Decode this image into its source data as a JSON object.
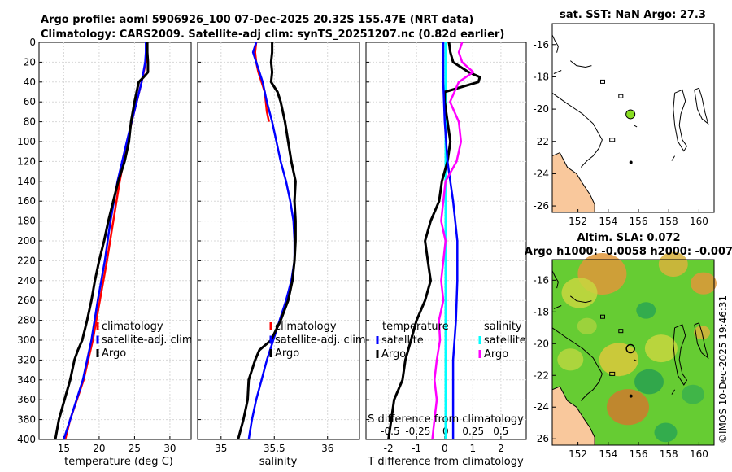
{
  "header": {
    "line1": "Argo profile: aoml 5906926_100 07-Dec-2025 20.32S 155.47E (NRT data)",
    "line2": "Climatology: CARS2009. Satellite-adj clim: synTS_20251207.nc (0.82d earlier)"
  },
  "watermark": "©IMOS 10-Dec-2025 19:46:31",
  "colors": {
    "climatology": "#ff0000",
    "satellite": "#0000ff",
    "argo": "#000000",
    "s_satellite": "#00ffff",
    "s_argo": "#ff00ff",
    "land": "#f9c89c",
    "coast": "#000000",
    "marker_sst": "#88dd22"
  },
  "chart_data": [
    {
      "id": "temperature",
      "type": "line",
      "xlabel": "temperature (deg C)",
      "ylabel": "",
      "xlim": [
        11.5,
        33
      ],
      "ylim": [
        0,
        400
      ],
      "y_inverted": true,
      "x_ticks": [
        "15",
        "20",
        "25",
        "30"
      ],
      "x_tick_values": [
        15,
        20,
        25,
        30
      ],
      "y_ticks": [
        "0",
        "20",
        "40",
        "60",
        "80",
        "100",
        "120",
        "140",
        "160",
        "180",
        "200",
        "220",
        "240",
        "260",
        "280",
        "300",
        "320",
        "340",
        "360",
        "380",
        "400"
      ],
      "legend": [
        "climatology",
        "satellite-adj. clim",
        "Argo"
      ],
      "series": [
        {
          "name": "climatology",
          "color": "#ff0000",
          "depth": [
            0,
            10,
            20,
            40,
            60,
            80,
            100,
            140,
            180,
            220,
            260,
            300,
            340,
            380,
            400
          ],
          "values": [
            26.7,
            26.7,
            26.6,
            26.0,
            25.3,
            24.6,
            24.0,
            22.9,
            22.0,
            21.1,
            20.1,
            19.1,
            17.8,
            15.9,
            15.2
          ]
        },
        {
          "name": "satellite-adj. clim",
          "color": "#0000ff",
          "depth": [
            0,
            10,
            20,
            40,
            60,
            80,
            100,
            140,
            180,
            220,
            260,
            300,
            340,
            380,
            400
          ],
          "values": [
            26.6,
            26.6,
            26.5,
            26.0,
            25.3,
            24.6,
            23.9,
            22.6,
            21.6,
            20.8,
            19.8,
            18.9,
            17.7,
            15.9,
            15.0
          ]
        },
        {
          "name": "Argo",
          "color": "#000000",
          "depth": [
            0,
            10,
            20,
            30,
            35,
            40,
            50,
            60,
            80,
            100,
            120,
            140,
            160,
            180,
            200,
            220,
            240,
            260,
            280,
            300,
            310,
            320,
            340,
            360,
            380,
            400
          ],
          "values": [
            26.8,
            26.8,
            26.9,
            26.9,
            26.3,
            25.6,
            25.3,
            25.0,
            24.5,
            24.2,
            23.6,
            22.7,
            22.0,
            21.3,
            20.7,
            20.0,
            19.4,
            18.9,
            18.3,
            17.6,
            17.0,
            16.5,
            15.9,
            15.1,
            14.3,
            13.8
          ]
        }
      ]
    },
    {
      "id": "salinity",
      "type": "line",
      "xlabel": "salinity",
      "ylabel": "",
      "xlim": [
        34.78,
        36.3
      ],
      "ylim": [
        0,
        400
      ],
      "y_inverted": true,
      "x_ticks": [
        "35",
        "35.5",
        "36"
      ],
      "x_tick_values": [
        35,
        35.5,
        36
      ],
      "legend": [
        "climatology",
        "satellite-adj. clim",
        "Argo"
      ],
      "series": [
        {
          "name": "climatology",
          "color": "#ff0000",
          "depth": [
            0,
            10,
            20,
            30,
            40,
            50,
            60,
            70,
            80
          ],
          "values": [
            35.33,
            35.32,
            35.33,
            35.35,
            35.38,
            35.41,
            35.42,
            35.43,
            35.45
          ]
        },
        {
          "name": "satellite-adj. clim",
          "color": "#0000ff",
          "depth": [
            0,
            10,
            20,
            40,
            60,
            80,
            100,
            120,
            140,
            160,
            180,
            200,
            220,
            240,
            260,
            280,
            300,
            320,
            340,
            360,
            380,
            400
          ],
          "values": [
            35.33,
            35.3,
            35.33,
            35.39,
            35.43,
            35.48,
            35.52,
            35.56,
            35.61,
            35.65,
            35.68,
            35.69,
            35.69,
            35.66,
            35.61,
            35.55,
            35.49,
            35.43,
            35.38,
            35.33,
            35.29,
            35.26
          ]
        },
        {
          "name": "Argo",
          "color": "#000000",
          "depth": [
            0,
            10,
            20,
            30,
            40,
            50,
            60,
            80,
            100,
            120,
            140,
            160,
            180,
            200,
            220,
            240,
            260,
            280,
            300,
            310,
            320,
            340,
            360,
            380,
            400
          ],
          "values": [
            35.48,
            35.48,
            35.47,
            35.48,
            35.47,
            35.53,
            35.56,
            35.6,
            35.63,
            35.66,
            35.7,
            35.69,
            35.7,
            35.7,
            35.69,
            35.67,
            35.63,
            35.56,
            35.47,
            35.36,
            35.32,
            35.26,
            35.25,
            35.21,
            35.16
          ]
        }
      ]
    },
    {
      "id": "difference",
      "type": "line",
      "xlabel": "T difference from climatology",
      "xlabel_top": "S difference from climatology",
      "ylabel": "",
      "xlim": [
        -2.8,
        2.9
      ],
      "xlim_s": [
        -0.72,
        0.73
      ],
      "ylim": [
        0,
        400
      ],
      "y_inverted": true,
      "x_ticks": [
        "-2",
        "-1",
        "0",
        "1",
        "2"
      ],
      "x_tick_values": [
        -2,
        -1,
        0,
        1,
        2
      ],
      "x_ticks_top": [
        "-0.5",
        "-0.25",
        "0",
        "0.25",
        "0.5"
      ],
      "x_tick_values_top": [
        -0.5,
        -0.25,
        0,
        0.25,
        0.5
      ],
      "legend_groups": [
        {
          "title": "temperature",
          "items": [
            "satellite",
            "Argo"
          ]
        },
        {
          "title": "salinity",
          "items": [
            "satellite",
            "Argo"
          ]
        }
      ],
      "series": [
        {
          "name": "temperature satellite",
          "color": "#0000ff",
          "axis": "T",
          "depth": [
            0,
            40,
            80,
            120,
            160,
            200,
            240,
            280,
            320,
            360,
            400
          ],
          "values": [
            -0.05,
            -0.05,
            0.0,
            0.1,
            0.3,
            0.45,
            0.45,
            0.4,
            0.3,
            0.3,
            0.3
          ]
        },
        {
          "name": "temperature Argo",
          "color": "#000000",
          "axis": "T",
          "depth": [
            0,
            10,
            20,
            30,
            35,
            40,
            50,
            60,
            80,
            100,
            120,
            140,
            160,
            180,
            200,
            220,
            240,
            260,
            280,
            300,
            320,
            340,
            360,
            380,
            400
          ],
          "values": [
            0.15,
            0.2,
            0.3,
            0.85,
            1.25,
            1.2,
            0.0,
            0.0,
            0.1,
            0.2,
            0.1,
            -0.1,
            -0.2,
            -0.5,
            -0.7,
            -0.6,
            -0.5,
            -0.7,
            -1.0,
            -1.2,
            -1.4,
            -1.5,
            -1.8,
            -1.9,
            -2.0
          ]
        },
        {
          "name": "salinity satellite",
          "color": "#00ffff",
          "axis": "S",
          "depth": [
            0,
            40,
            80,
            120,
            160,
            200,
            240,
            280,
            320,
            360,
            400
          ],
          "values": [
            0.0,
            0.0,
            0.0,
            0.0,
            0.0,
            0.0,
            0.0,
            0.0,
            0.0,
            0.0,
            0.0
          ]
        },
        {
          "name": "salinity Argo",
          "color": "#ff00ff",
          "axis": "S",
          "depth": [
            0,
            10,
            20,
            30,
            40,
            60,
            80,
            100,
            120,
            140,
            160,
            180,
            200,
            220,
            240,
            260,
            280,
            300,
            320,
            340,
            360,
            380,
            400
          ],
          "values": [
            0.15,
            0.12,
            0.15,
            0.25,
            0.12,
            0.04,
            0.12,
            0.14,
            0.1,
            0.0,
            -0.02,
            -0.04,
            0.0,
            -0.02,
            -0.04,
            -0.02,
            -0.06,
            -0.05,
            -0.08,
            -0.1,
            -0.08,
            -0.1,
            -0.12
          ]
        }
      ]
    },
    {
      "id": "sst_map",
      "type": "map",
      "title": "sat. SST: NaN Argo: 27.3",
      "xlim": [
        150.3,
        161
      ],
      "ylim": [
        -26.4,
        -14.7
      ],
      "x_ticks": [
        "152",
        "154",
        "156",
        "158",
        "160"
      ],
      "x_tick_values": [
        152,
        154,
        156,
        158,
        160
      ],
      "y_ticks": [
        "-16",
        "-18",
        "-20",
        "-22",
        "-24",
        "-26"
      ],
      "y_tick_values": [
        -16,
        -18,
        -20,
        -22,
        -24,
        -26
      ],
      "marker": {
        "lon": 155.47,
        "lat": -20.32
      }
    },
    {
      "id": "sla_map",
      "type": "heatmap",
      "title_line1": "Altim. SLA: 0.072",
      "title_line2": "Argo h1000: -0.0058 h2000: -0.007",
      "xlim": [
        150.3,
        161
      ],
      "ylim": [
        -26.4,
        -14.7
      ],
      "x_ticks": [
        "152",
        "154",
        "156",
        "158",
        "160"
      ],
      "x_tick_values": [
        152,
        154,
        156,
        158,
        160
      ],
      "y_ticks": [
        "-16",
        "-18",
        "-20",
        "-22",
        "-24",
        "-26"
      ],
      "y_tick_values": [
        -16,
        -18,
        -20,
        -22,
        -24,
        -26
      ],
      "marker": {
        "lon": 155.47,
        "lat": -20.32
      }
    }
  ]
}
